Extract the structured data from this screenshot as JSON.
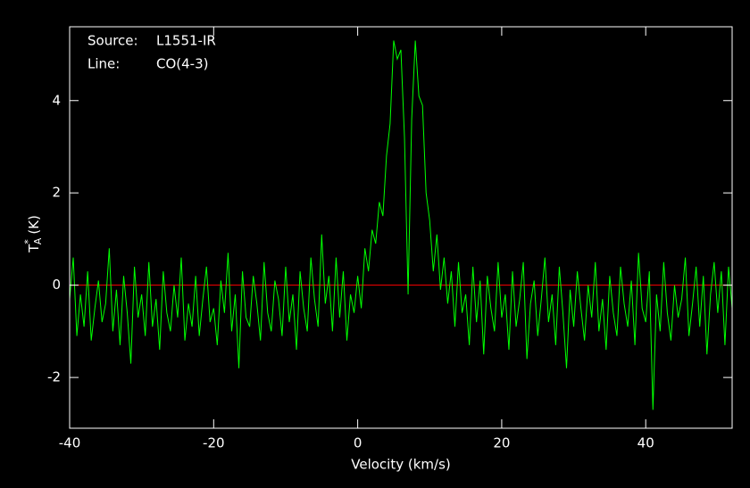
{
  "chart_data": {
    "type": "line",
    "annotations": [
      {
        "label": "Source:",
        "text": "L1551-IR"
      },
      {
        "label": "Line:",
        "text": "CO(4-3)"
      }
    ],
    "x_label": "Velocity (km/s)",
    "y_label": {
      "symbol": "T",
      "sup": "*",
      "sub": "A",
      "unit": "(K)"
    },
    "xlim": [
      -40,
      52
    ],
    "ylim": [
      -3.1,
      5.6
    ],
    "xticks": [
      -40,
      -20,
      0,
      20,
      40
    ],
    "yticks": [
      -2,
      0,
      2,
      4
    ],
    "baseline": {
      "value": 0,
      "color": "#ff0000"
    },
    "x": [
      -40,
      -39.5,
      -39,
      -38.5,
      -38,
      -37.5,
      -37,
      -36.5,
      -36,
      -35.5,
      -35,
      -34.5,
      -34,
      -33.5,
      -33,
      -32.5,
      -32,
      -31.5,
      -31,
      -30.5,
      -30,
      -29.5,
      -29,
      -28.5,
      -28,
      -27.5,
      -27,
      -26.5,
      -26,
      -25.5,
      -25,
      -24.5,
      -24,
      -23.5,
      -23,
      -22.5,
      -22,
      -21.5,
      -21,
      -20.5,
      -20,
      -19.5,
      -19,
      -18.5,
      -18,
      -17.5,
      -17,
      -16.5,
      -16,
      -15.5,
      -15,
      -14.5,
      -14,
      -13.5,
      -13,
      -12.5,
      -12,
      -11.5,
      -11,
      -10.5,
      -10,
      -9.5,
      -9,
      -8.5,
      -8,
      -7.5,
      -7,
      -6.5,
      -6,
      -5.5,
      -5,
      -4.5,
      -4,
      -3.5,
      -3,
      -2.5,
      -2,
      -1.5,
      -1,
      -0.5,
      0,
      0.5,
      1,
      1.5,
      2,
      2.5,
      3,
      3.5,
      4,
      4.5,
      5,
      5.5,
      6,
      6.5,
      7,
      7.5,
      8,
      8.5,
      9,
      9.5,
      10,
      10.5,
      11,
      11.5,
      12,
      12.5,
      13,
      13.5,
      14,
      14.5,
      15,
      15.5,
      16,
      16.5,
      17,
      17.5,
      18,
      18.5,
      19,
      19.5,
      20,
      20.5,
      21,
      21.5,
      22,
      22.5,
      23,
      23.5,
      24,
      24.5,
      25,
      25.5,
      26,
      26.5,
      27,
      27.5,
      28,
      28.5,
      29,
      29.5,
      30,
      30.5,
      31,
      31.5,
      32,
      32.5,
      33,
      33.5,
      34,
      34.5,
      35,
      35.5,
      36,
      36.5,
      37,
      37.5,
      38,
      38.5,
      39,
      39.5,
      40,
      40.5,
      41,
      41.5,
      42,
      42.5,
      43,
      43.5,
      44,
      44.5,
      45,
      45.5,
      46,
      46.5,
      47,
      47.5,
      48,
      48.5,
      49,
      49.5,
      50,
      50.5,
      51,
      51.5,
      52
    ],
    "series": [
      {
        "color": "#00ff00",
        "values": [
          -0.3,
          0.6,
          -1.1,
          -0.2,
          -0.9,
          0.3,
          -1.2,
          -0.5,
          0.1,
          -0.8,
          -0.4,
          0.8,
          -1.0,
          -0.1,
          -1.3,
          0.2,
          -0.6,
          -1.7,
          0.4,
          -0.7,
          -0.2,
          -1.1,
          0.5,
          -0.9,
          -0.3,
          -1.4,
          0.3,
          -0.6,
          -1.0,
          0.0,
          -0.7,
          0.6,
          -1.2,
          -0.4,
          -0.9,
          0.2,
          -1.1,
          -0.3,
          0.4,
          -0.8,
          -0.5,
          -1.3,
          0.1,
          -0.6,
          0.7,
          -1.0,
          -0.2,
          -1.8,
          0.3,
          -0.7,
          -0.9,
          0.2,
          -0.4,
          -1.2,
          0.5,
          -0.6,
          -1.0,
          0.1,
          -0.3,
          -1.1,
          0.4,
          -0.8,
          -0.2,
          -1.4,
          0.3,
          -0.5,
          -1.0,
          0.6,
          -0.3,
          -0.9,
          1.1,
          -0.4,
          0.2,
          -1.0,
          0.6,
          -0.7,
          0.3,
          -1.2,
          -0.2,
          -0.6,
          0.2,
          -0.5,
          0.8,
          0.3,
          1.2,
          0.9,
          1.8,
          1.5,
          2.8,
          3.5,
          5.3,
          4.9,
          5.1,
          3.2,
          -0.2,
          3.6,
          5.3,
          4.1,
          3.9,
          2.0,
          1.4,
          0.3,
          1.1,
          -0.1,
          0.6,
          -0.4,
          0.3,
          -0.9,
          0.5,
          -0.6,
          -0.2,
          -1.3,
          0.4,
          -0.8,
          0.1,
          -1.5,
          0.2,
          -0.5,
          -1.0,
          0.5,
          -0.7,
          -0.2,
          -1.4,
          0.3,
          -0.9,
          -0.3,
          0.5,
          -1.6,
          -0.4,
          0.1,
          -1.1,
          -0.3,
          0.6,
          -0.8,
          -0.2,
          -1.3,
          0.4,
          -0.6,
          -1.8,
          -0.1,
          -0.9,
          0.3,
          -0.5,
          -1.2,
          0.0,
          -0.7,
          0.5,
          -1.0,
          -0.3,
          -1.4,
          0.2,
          -0.6,
          -1.1,
          0.4,
          -0.4,
          -0.9,
          0.1,
          -1.3,
          0.7,
          -0.5,
          -0.8,
          0.3,
          -2.7,
          -0.2,
          -1.0,
          0.5,
          -0.6,
          -1.2,
          0.0,
          -0.7,
          -0.3,
          0.6,
          -1.1,
          -0.4,
          0.4,
          -0.9,
          0.2,
          -1.5,
          -0.2,
          0.5,
          -0.6,
          0.3,
          -1.3,
          0.4,
          -0.5
        ]
      }
    ]
  }
}
